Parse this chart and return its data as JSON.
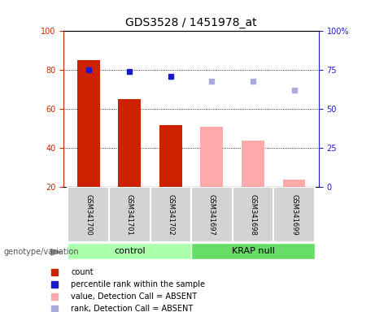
{
  "title": "GDS3528 / 1451978_at",
  "categories": [
    "GSM341700",
    "GSM341701",
    "GSM341702",
    "GSM341697",
    "GSM341698",
    "GSM341699"
  ],
  "bar_heights": [
    85,
    65,
    52,
    51,
    44,
    24
  ],
  "bar_absent": [
    false,
    false,
    false,
    true,
    true,
    true
  ],
  "dot_values": [
    75,
    74,
    71,
    68,
    68,
    62
  ],
  "dot_absent": [
    false,
    false,
    false,
    true,
    true,
    true
  ],
  "bar_color_present": "#cc2200",
  "bar_color_absent": "#ffaaaa",
  "dot_color_present": "#1a1acc",
  "dot_color_absent": "#aaaadd",
  "ylim_left": [
    20,
    100
  ],
  "ylim_right": [
    0,
    100
  ],
  "yticks_left": [
    20,
    40,
    60,
    80,
    100
  ],
  "yticks_right": [
    0,
    25,
    50,
    75,
    100
  ],
  "ytick_labels_right": [
    "0",
    "25",
    "50",
    "75",
    "100%"
  ],
  "legend_items": [
    {
      "label": "count",
      "color": "#cc2200"
    },
    {
      "label": "percentile rank within the sample",
      "color": "#1a1acc"
    },
    {
      "label": "value, Detection Call = ABSENT",
      "color": "#ffaaaa"
    },
    {
      "label": "rank, Detection Call = ABSENT",
      "color": "#aaaadd"
    }
  ],
  "group_labels": [
    "control",
    "KRAP null"
  ],
  "group_color_1": "#aaffaa",
  "group_color_2": "#66dd66",
  "genotype_label": "genotype/variation",
  "title_fontsize": 10,
  "tick_fontsize": 7,
  "figsize": [
    4.61,
    3.84
  ],
  "dpi": 100
}
